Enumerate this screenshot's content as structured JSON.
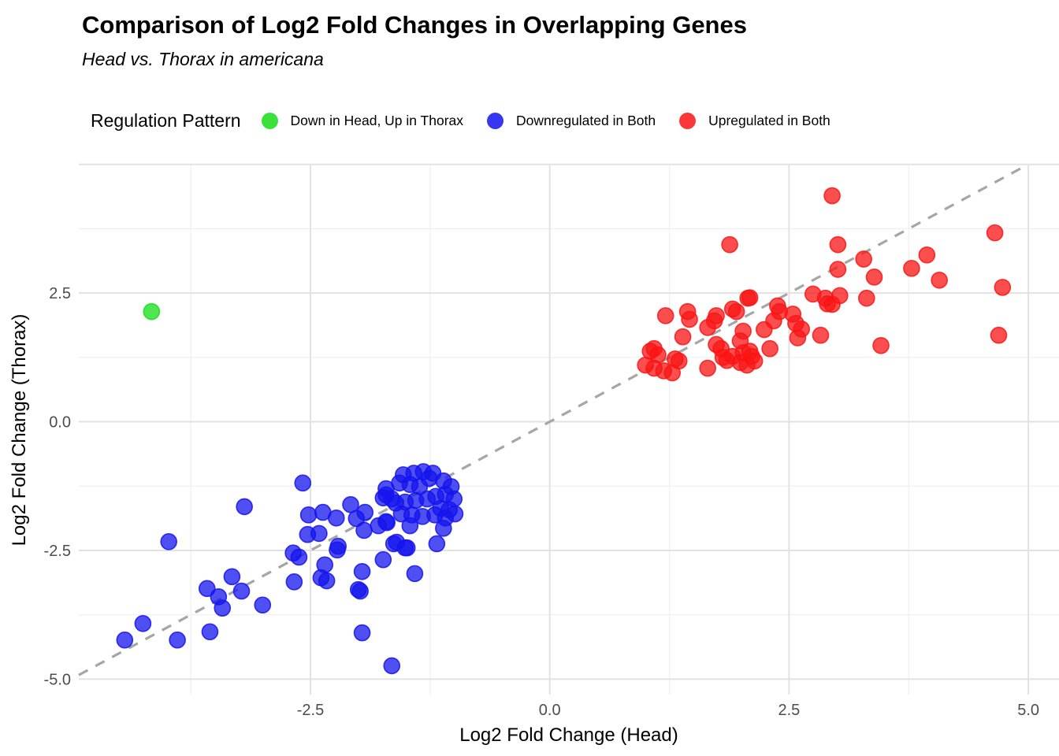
{
  "header": {
    "title": "Comparison of Log2 Fold Changes in Overlapping Genes",
    "subtitle": "Head vs. Thorax in americana"
  },
  "legend": {
    "title": "Regulation Pattern",
    "items": [
      {
        "label": "Down in Head, Up in Thorax",
        "color": "#15DD15"
      },
      {
        "label": "Downregulated in Both",
        "color": "#1414EE"
      },
      {
        "label": "Upregulated in Both",
        "color": "#FA1414"
      }
    ]
  },
  "chart_data": {
    "type": "scatter",
    "title": "Comparison of Log2 Fold Changes in Overlapping Genes",
    "subtitle": "Head vs. Thorax in americana",
    "xlabel": "Log2 Fold Change (Head)",
    "ylabel": "Log2 Fold Change (Thorax)",
    "legend_title": "Regulation Pattern",
    "legend_position": "top",
    "grid": true,
    "xlim": [
      -4.92,
      5.32
    ],
    "ylim": [
      -5.3,
      4.98
    ],
    "x_ticks": [
      {
        "v": -2.5,
        "label": "-2.5"
      },
      {
        "v": 0,
        "label": "0.0"
      },
      {
        "v": 2.5,
        "label": "2.5"
      },
      {
        "v": 5,
        "label": "5.0"
      }
    ],
    "y_ticks": [
      {
        "v": -5,
        "label": "-5.0"
      },
      {
        "v": -2.5,
        "label": "-2.5"
      },
      {
        "v": 0,
        "label": "0.0"
      },
      {
        "v": 2.5,
        "label": "2.5"
      }
    ],
    "x_major": [
      -2.5,
      0,
      2.5,
      5
    ],
    "x_minor": [
      -3.75,
      -1.25,
      1.25,
      3.75
    ],
    "y_major": [
      -5,
      -2.5,
      0,
      2.5,
      5
    ],
    "y_minor": [
      -3.75,
      -1.25,
      1.25,
      3.75
    ],
    "reference_line": {
      "name": "identity-line",
      "style": "dashed",
      "color": "#A6A6A6",
      "points": [
        [
          -4.92,
          -4.92
        ],
        [
          4.98,
          4.98
        ]
      ]
    },
    "style": {
      "grid_major": "#E2E2E2",
      "grid_minor": "#EFEFEF",
      "tick_text": "#4D4D4D",
      "axis_title_text": "#000000",
      "point_radius": 10,
      "fill_opacity": 0.75,
      "stroke_opacity": 0.85
    },
    "series": [
      {
        "name": "Downregulated in Both",
        "color": "#1414EE",
        "points": [
          [
            -3.98,
            -2.33
          ],
          [
            -3.19,
            -1.65
          ],
          [
            -4.44,
            -4.24
          ],
          [
            -4.25,
            -3.92
          ],
          [
            -3.89,
            -4.24
          ],
          [
            -3.55,
            -4.08
          ],
          [
            -3.58,
            -3.24
          ],
          [
            -3.46,
            -3.4
          ],
          [
            -3.32,
            -3.01
          ],
          [
            -3.22,
            -3.29
          ],
          [
            -3.42,
            -3.62
          ],
          [
            -3.0,
            -3.56
          ],
          [
            -2.68,
            -2.55
          ],
          [
            -2.62,
            -2.63
          ],
          [
            -2.67,
            -3.11
          ],
          [
            -2.35,
            -2.78
          ],
          [
            -2.33,
            -3.09
          ],
          [
            -2.21,
            -2.42
          ],
          [
            -2.37,
            -1.76
          ],
          [
            -2.23,
            -1.87
          ],
          [
            -2.52,
            -1.81
          ],
          [
            -2.53,
            -2.19
          ],
          [
            -2.41,
            -2.17
          ],
          [
            -2.08,
            -1.61
          ],
          [
            -2.02,
            -1.88
          ],
          [
            -1.93,
            -1.76
          ],
          [
            -1.94,
            -2.11
          ],
          [
            -1.79,
            -2.02
          ],
          [
            -1.71,
            -1.3
          ],
          [
            -1.74,
            -1.48
          ],
          [
            -1.65,
            -1.5
          ],
          [
            -1.71,
            -1.94
          ],
          [
            -1.6,
            -2.34
          ],
          [
            -1.49,
            -2.45
          ],
          [
            -1.74,
            -2.68
          ],
          [
            -1.96,
            -2.91
          ],
          [
            -2.22,
            -2.49
          ],
          [
            -2.39,
            -3.03
          ],
          [
            -1.41,
            -2.95
          ],
          [
            -1.18,
            -2.37
          ],
          [
            -1.63,
            -2.37
          ],
          [
            -1.51,
            -2.45
          ],
          [
            -2.0,
            -3.26
          ],
          [
            -1.98,
            -3.29
          ],
          [
            -1.96,
            -4.1
          ],
          [
            -1.65,
            -4.74
          ],
          [
            -1.53,
            -1.03
          ],
          [
            -1.42,
            -1.0
          ],
          [
            -1.32,
            -0.97
          ],
          [
            -1.22,
            -1.0
          ],
          [
            -1.57,
            -1.19
          ],
          [
            -1.46,
            -1.22
          ],
          [
            -1.36,
            -1.26
          ],
          [
            -1.11,
            -1.15
          ],
          [
            -1.03,
            -1.26
          ],
          [
            -1.09,
            -1.41
          ],
          [
            -1.0,
            -1.5
          ],
          [
            -1.19,
            -1.45
          ],
          [
            -1.28,
            -1.5
          ],
          [
            -1.4,
            -1.53
          ],
          [
            -1.51,
            -1.56
          ],
          [
            -1.61,
            -1.58
          ],
          [
            -1.71,
            -1.42
          ],
          [
            -1.55,
            -1.79
          ],
          [
            -1.44,
            -1.81
          ],
          [
            -1.33,
            -1.84
          ],
          [
            -1.2,
            -1.81
          ],
          [
            -1.09,
            -1.87
          ],
          [
            -0.99,
            -1.79
          ],
          [
            -1.7,
            -1.96
          ],
          [
            -1.46,
            -2.02
          ],
          [
            -1.11,
            -2.07
          ],
          [
            -1.26,
            -1.1
          ],
          [
            -1.14,
            -1.68
          ],
          [
            -1.05,
            -1.71
          ],
          [
            -2.58,
            -1.19
          ]
        ]
      },
      {
        "name": "Upregulated in Both",
        "color": "#FA1414",
        "points": [
          [
            1.21,
            2.06
          ],
          [
            1.44,
            2.14
          ],
          [
            1.46,
            1.99
          ],
          [
            1.91,
            2.19
          ],
          [
            1.95,
            2.14
          ],
          [
            1.74,
            2.06
          ],
          [
            1.72,
            1.96
          ],
          [
            1.65,
            1.83
          ],
          [
            2.07,
            2.4
          ],
          [
            2.38,
            2.25
          ],
          [
            2.4,
            2.14
          ],
          [
            2.34,
            1.96
          ],
          [
            2.54,
            2.09
          ],
          [
            2.57,
            1.91
          ],
          [
            2.63,
            1.8
          ],
          [
            2.75,
            2.48
          ],
          [
            2.9,
            2.29
          ],
          [
            2.83,
            1.68
          ],
          [
            2.02,
            1.76
          ],
          [
            2.24,
            1.79
          ],
          [
            1.39,
            1.65
          ],
          [
            1.09,
            1.42
          ],
          [
            1.05,
            1.37
          ],
          [
            1.13,
            1.3
          ],
          [
            1.31,
            1.22
          ],
          [
            1.35,
            1.18
          ],
          [
            1.0,
            1.1
          ],
          [
            1.09,
            1.04
          ],
          [
            1.19,
            0.99
          ],
          [
            1.28,
            0.95
          ],
          [
            1.74,
            1.5
          ],
          [
            1.79,
            1.42
          ],
          [
            1.81,
            1.25
          ],
          [
            1.85,
            1.19
          ],
          [
            1.91,
            1.27
          ],
          [
            1.99,
            1.57
          ],
          [
            2.02,
            1.34
          ],
          [
            2.09,
            1.37
          ],
          [
            2.11,
            1.27
          ],
          [
            1.99,
            1.15
          ],
          [
            2.06,
            1.1
          ],
          [
            1.65,
            1.04
          ],
          [
            2.3,
            1.42
          ],
          [
            2.14,
            1.18
          ],
          [
            2.59,
            1.63
          ],
          [
            1.88,
            3.44
          ],
          [
            2.95,
            4.39
          ],
          [
            3.01,
            3.44
          ],
          [
            3.01,
            2.96
          ],
          [
            3.28,
            3.16
          ],
          [
            3.39,
            2.81
          ],
          [
            3.78,
            2.98
          ],
          [
            3.94,
            3.24
          ],
          [
            4.07,
            2.75
          ],
          [
            4.65,
            3.67
          ],
          [
            4.73,
            2.61
          ],
          [
            4.69,
            1.68
          ],
          [
            3.46,
            1.48
          ],
          [
            3.31,
            2.4
          ],
          [
            3.03,
            2.45
          ],
          [
            2.95,
            2.28
          ],
          [
            2.88,
            2.4
          ],
          [
            2.09,
            2.41
          ]
        ]
      },
      {
        "name": "Down in Head, Up in Thorax",
        "color": "#15DD15",
        "points": [
          [
            -4.16,
            2.14
          ]
        ]
      }
    ]
  }
}
